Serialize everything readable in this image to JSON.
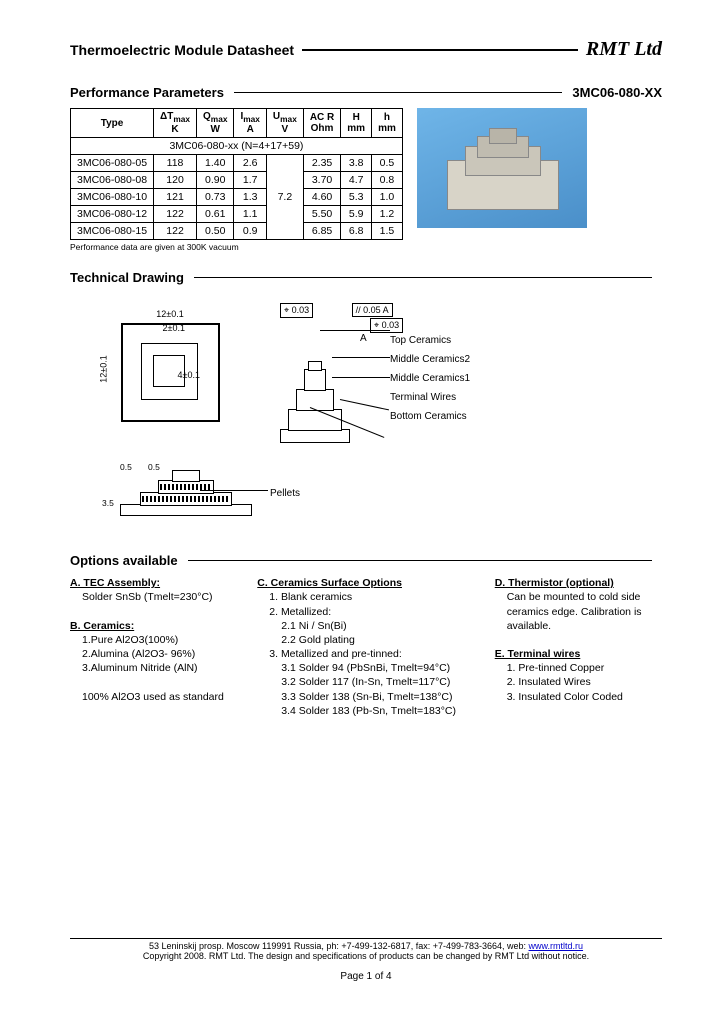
{
  "header": {
    "title": "Thermoelectric Module Datasheet",
    "company": "RMT Ltd"
  },
  "section_perf": {
    "title": "Performance Parameters",
    "partno": "3MC06-080-XX"
  },
  "perf_table": {
    "headers": [
      "Type",
      "ΔTmax K",
      "Qmax W",
      "Imax A",
      "Umax V",
      "AC R Ohm",
      "H mm",
      "h mm"
    ],
    "span_row": "3MC06-080-xx (N=4+17+59)",
    "umax_merged": "7.2",
    "rows": [
      {
        "type": "3MC06-080-05",
        "dt": "118",
        "q": "1.40",
        "i": "2.6",
        "r": "2.35",
        "H": "3.8",
        "h": "0.5"
      },
      {
        "type": "3MC06-080-08",
        "dt": "120",
        "q": "0.90",
        "i": "1.7",
        "r": "3.70",
        "H": "4.7",
        "h": "0.8"
      },
      {
        "type": "3MC06-080-10",
        "dt": "121",
        "q": "0.73",
        "i": "1.3",
        "r": "4.60",
        "H": "5.3",
        "h": "1.0"
      },
      {
        "type": "3MC06-080-12",
        "dt": "122",
        "q": "0.61",
        "i": "1.1",
        "r": "5.50",
        "H": "5.9",
        "h": "1.2"
      },
      {
        "type": "3MC06-080-15",
        "dt": "122",
        "q": "0.50",
        "i": "0.9",
        "r": "6.85",
        "H": "6.8",
        "h": "1.5"
      }
    ],
    "note": "Performance data are given at 300K vacuum"
  },
  "section_tech": {
    "title": "Technical Drawing"
  },
  "drawing": {
    "top_dim": "12±0.1",
    "inner_dim": "2±0.1",
    "side_dim": "12±0.1",
    "inner_dim2": "4±0.1",
    "tol1": "⌖ 0.03",
    "tol2": "// 0.05 A",
    "tol3": "⌖ 0.03",
    "a_label": "A",
    "labels": {
      "top": "Top Ceramics",
      "mid2": "Middle Ceramics2",
      "mid1": "Middle Ceramics1",
      "wires": "Terminal Wires",
      "bottom": "Bottom Ceramics",
      "pellets": "Pellets"
    },
    "bottom_dims": {
      "d1": "3.5",
      "d2": "0.5",
      "d3": "0.5"
    }
  },
  "section_opts": {
    "title": "Options available"
  },
  "options": {
    "A": {
      "h": "A. TEC Assembly:",
      "l1": "Solder SnSb (Tmelt=230°C)"
    },
    "B": {
      "h": "B. Ceramics:",
      "l1": "1.Pure Al2O3(100%)",
      "l2": "2.Alumina (Al2O3- 96%)",
      "l3": "3.Aluminum Nitride (AlN)",
      "note": "100% Al2O3 used as standard"
    },
    "C": {
      "h": "C. Ceramics Surface Options",
      "l1": "1. Blank ceramics",
      "l2": "2. Metallized:",
      "l21": "2.1 Ni / Sn(Bi)",
      "l22": "2.2 Gold plating",
      "l3": "3. Metallized and pre-tinned:",
      "l31": "3.1 Solder 94 (PbSnBi, Tmelt=94°C)",
      "l32": "3.2 Solder 117 (In-Sn, Tmelt=117°C)",
      "l33": "3.3 Solder 138 (Sn-Bi, Tmelt=138°C)",
      "l34": "3.4 Solder 183 (Pb-Sn, Tmelt=183°C)"
    },
    "D": {
      "h": "D. Thermistor (optional)",
      "l1": "Can be mounted to cold side ceramics edge. Calibration is available."
    },
    "E": {
      "h": "E. Terminal wires",
      "l1": "1. Pre-tinned Copper",
      "l2": "2. Insulated Wires",
      "l3": "3. Insulated Color Coded"
    }
  },
  "footer": {
    "addr": "53 Leninskij prosp. Moscow 119991 Russia, ph: +7-499-132-6817, fax: +7-499-783-3664, web: ",
    "url": "www.rmtltd.ru",
    "copy": "Copyright 2008. RMT Ltd. The design and specifications of products can be changed by RMT Ltd without notice.",
    "page": "Page 1 of 4"
  }
}
